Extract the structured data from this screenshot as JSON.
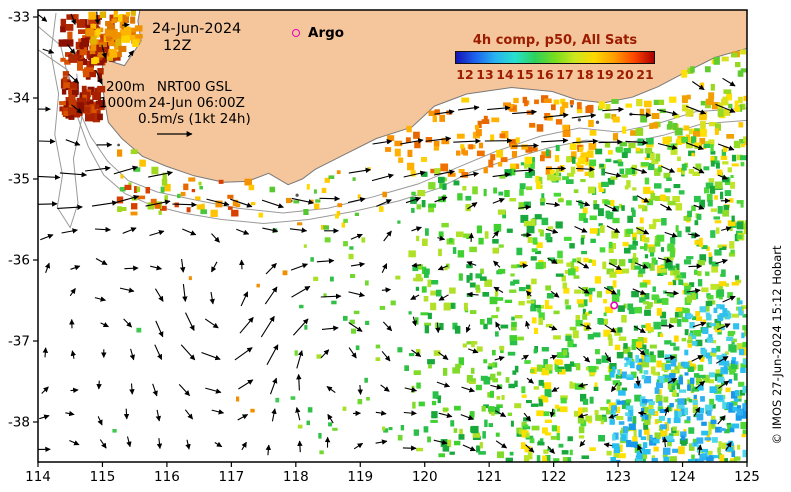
{
  "header": {
    "date": "24-Jun-2024",
    "time": "12Z",
    "depth1": "200m",
    "model": "NRT00 GSL",
    "depth2": "1000m",
    "model2_date": "24-Jun 06:00Z",
    "scale_label": "0.5m/s (1kt 24h)"
  },
  "argo": {
    "label": "Argo",
    "color": "#e800c0",
    "point_lon": 122.94,
    "point_lat": -36.56
  },
  "colorbar": {
    "title": "4h comp, p50, All Sats",
    "text_color": "#9b1c00",
    "labels": [
      "12",
      "13",
      "14",
      "15",
      "16",
      "17",
      "18",
      "19",
      "20",
      "21"
    ],
    "gradient": [
      "#1414b4",
      "#1e64f0",
      "#28b4f0",
      "#28e0cc",
      "#2ed25a",
      "#78dc1e",
      "#cce61e",
      "#ffd800",
      "#ff9c00",
      "#ff4600",
      "#aa0000"
    ]
  },
  "axes": {
    "x_labels": [
      "114",
      "115",
      "116",
      "117",
      "118",
      "119",
      "120",
      "121",
      "122",
      "123",
      "124",
      "125"
    ],
    "y_labels": [
      "-33",
      "-34",
      "-35",
      "-36",
      "-37",
      "-38"
    ]
  },
  "copyright": "© IMOS 27-Jun-2024 15:12 Hobart",
  "map": {
    "land_color": "#f5c69b",
    "coast_color": "#7a7a7a",
    "contour_color": "#9a9a9a",
    "land_polygon": [
      [
        115.62,
        -32.6
      ],
      [
        115.62,
        -32.75
      ],
      [
        115.55,
        -33.05
      ],
      [
        115.6,
        -33.3
      ],
      [
        115.34,
        -33.6
      ],
      [
        115.02,
        -33.52
      ],
      [
        114.98,
        -33.72
      ],
      [
        115.03,
        -34.02
      ],
      [
        115.09,
        -34.3
      ],
      [
        115.3,
        -34.5
      ],
      [
        115.62,
        -34.72
      ],
      [
        115.98,
        -34.84
      ],
      [
        116.42,
        -34.96
      ],
      [
        116.88,
        -35.04
      ],
      [
        117.25,
        -35.03
      ],
      [
        117.58,
        -34.93
      ],
      [
        117.88,
        -35.07
      ],
      [
        118.1,
        -35.0
      ],
      [
        118.3,
        -34.88
      ],
      [
        118.75,
        -34.7
      ],
      [
        119.25,
        -34.5
      ],
      [
        119.8,
        -34.36
      ],
      [
        120.15,
        -34.1
      ],
      [
        120.65,
        -33.95
      ],
      [
        121.35,
        -33.87
      ],
      [
        121.98,
        -33.92
      ],
      [
        122.35,
        -34.02
      ],
      [
        122.78,
        -34.06
      ],
      [
        123.22,
        -33.99
      ],
      [
        123.62,
        -33.86
      ],
      [
        124.05,
        -33.68
      ],
      [
        124.5,
        -33.5
      ],
      [
        125.3,
        -33.32
      ],
      [
        125.3,
        -32.6
      ]
    ],
    "islands": [
      [
        122.12,
        -34.2,
        1.7
      ],
      [
        122.4,
        -34.27,
        1.6
      ],
      [
        122.68,
        -34.3,
        1.7
      ],
      [
        122.95,
        -34.27,
        1.5
      ],
      [
        123.2,
        -34.2,
        1.6
      ],
      [
        122.28,
        -34.1,
        1.4
      ],
      [
        118.02,
        -35.2,
        1.6
      ],
      [
        117.93,
        -35.27,
        1.3
      ],
      [
        115.25,
        -34.58,
        1.4
      ]
    ],
    "contours": [
      [
        [
          113.9,
          -33.05
        ],
        [
          114.35,
          -33.35
        ],
        [
          114.5,
          -33.85
        ],
        [
          114.62,
          -34.25
        ],
        [
          114.78,
          -34.6
        ],
        [
          115.02,
          -34.95
        ],
        [
          115.35,
          -35.18
        ],
        [
          115.75,
          -35.32
        ],
        [
          116.25,
          -35.42
        ],
        [
          116.85,
          -35.5
        ],
        [
          117.5,
          -35.55
        ],
        [
          118.2,
          -35.5
        ],
        [
          118.9,
          -35.4
        ],
        [
          119.6,
          -35.27
        ],
        [
          120.2,
          -35.12
        ],
        [
          120.7,
          -34.92
        ],
        [
          121.3,
          -34.76
        ],
        [
          121.9,
          -34.62
        ],
        [
          122.5,
          -34.52
        ],
        [
          123.1,
          -34.56
        ],
        [
          123.7,
          -34.46
        ],
        [
          124.3,
          -34.32
        ],
        [
          125.1,
          -34.27
        ]
      ],
      [
        [
          113.9,
          -33.35
        ],
        [
          114.45,
          -33.65
        ],
        [
          114.62,
          -34.12
        ],
        [
          114.82,
          -34.48
        ],
        [
          115.08,
          -34.78
        ],
        [
          115.4,
          -35.02
        ],
        [
          115.85,
          -35.16
        ],
        [
          116.45,
          -35.26
        ],
        [
          117.1,
          -35.36
        ],
        [
          117.8,
          -35.42
        ],
        [
          118.5,
          -35.36
        ],
        [
          119.2,
          -35.22
        ],
        [
          119.9,
          -35.06
        ],
        [
          120.5,
          -34.86
        ],
        [
          121.1,
          -34.66
        ],
        [
          121.8,
          -34.47
        ],
        [
          122.4,
          -34.37
        ],
        [
          123.0,
          -34.42
        ],
        [
          123.6,
          -34.32
        ],
        [
          124.2,
          -34.17
        ],
        [
          125.1,
          -34.12
        ]
      ],
      [
        [
          114.28,
          -32.95
        ],
        [
          114.2,
          -33.45
        ],
        [
          114.32,
          -33.95
        ],
        [
          114.26,
          -34.45
        ],
        [
          114.38,
          -34.95
        ],
        [
          114.3,
          -35.35
        ],
        [
          114.5,
          -35.6
        ],
        [
          114.62,
          -35.3
        ],
        [
          114.55,
          -34.75
        ],
        [
          114.68,
          -34.25
        ],
        [
          114.6,
          -33.7
        ]
      ]
    ]
  },
  "sst_regions": [
    {
      "name": "west-cape-dark",
      "lon": [
        114.38,
        115.22
      ],
      "lat": [
        -34.25,
        -33.0
      ],
      "colors": [
        "#8c1000",
        "#a82000",
        "#c23800",
        "#8c1000",
        "#d85200",
        "#b02800"
      ],
      "count": 170,
      "size": [
        4,
        10
      ],
      "seed": 11
    },
    {
      "name": "geographe-orange",
      "lon": [
        114.8,
        115.65
      ],
      "lat": [
        -33.6,
        -32.95
      ],
      "colors": [
        "#e07800",
        "#f09200",
        "#ffb400",
        "#ffd200",
        "#e0b400"
      ],
      "count": 90,
      "size": [
        4,
        9
      ],
      "seed": 12
    },
    {
      "name": "capes-south-coastal",
      "lon": [
        115.25,
        117.3
      ],
      "lat": [
        -35.45,
        -34.6
      ],
      "colors": [
        "#d84000",
        "#e86800",
        "#f49200",
        "#ffc400",
        "#48c83c",
        "#a0d820"
      ],
      "count": 80,
      "size": [
        3,
        8
      ],
      "seed": 13
    },
    {
      "name": "mid-coast-sparse",
      "lon": [
        117.3,
        119.4
      ],
      "lat": [
        -35.6,
        -34.85
      ],
      "colors": [
        "#f09200",
        "#ffc800",
        "#58c832",
        "#ffd800"
      ],
      "count": 34,
      "size": [
        3,
        6
      ],
      "seed": 14
    },
    {
      "name": "east-coastal-orange",
      "lon": [
        119.4,
        122.7
      ],
      "lat": [
        -34.95,
        -34.0
      ],
      "colors": [
        "#e86800",
        "#f89200",
        "#ffb000",
        "#ffd000",
        "#f07000"
      ],
      "count": 130,
      "size": [
        4,
        8
      ],
      "seed": 15
    },
    {
      "name": "fareast-coastal-yellow",
      "lon": [
        122.7,
        125.0
      ],
      "lat": [
        -34.6,
        -33.3
      ],
      "colors": [
        "#ffc800",
        "#ffe000",
        "#d8e020",
        "#98d820",
        "#f0a000",
        "#60cc30"
      ],
      "count": 150,
      "size": [
        4,
        8
      ],
      "seed": 16
    },
    {
      "name": "east-green-1",
      "lon": [
        119.8,
        121.5
      ],
      "lat": [
        -38.5,
        -34.9
      ],
      "colors": [
        "#18a83c",
        "#28c048",
        "#40d030",
        "#80dc28",
        "#b0e028"
      ],
      "count": 230,
      "size": [
        3,
        8
      ],
      "seed": 17
    },
    {
      "name": "east-green-2",
      "lon": [
        121.5,
        123.3
      ],
      "lat": [
        -38.5,
        -34.6
      ],
      "colors": [
        "#18a83c",
        "#28c048",
        "#48d838",
        "#88dc28",
        "#b8e428",
        "#ffe000"
      ],
      "count": 430,
      "size": [
        3,
        8
      ],
      "seed": 18
    },
    {
      "name": "east-green-3",
      "lon": [
        123.3,
        125.0
      ],
      "lat": [
        -38.5,
        -34.5
      ],
      "colors": [
        "#18a83c",
        "#2cc44c",
        "#50d838",
        "#90dc28",
        "#c0e428",
        "#ffd800"
      ],
      "count": 520,
      "size": [
        3,
        8
      ],
      "seed": 19
    },
    {
      "name": "southeast-cyan",
      "lon": [
        122.9,
        125.0
      ],
      "lat": [
        -38.5,
        -37.2
      ],
      "colors": [
        "#28c0f0",
        "#1898e8",
        "#50d8e8",
        "#30b0f0"
      ],
      "count": 180,
      "size": [
        3,
        8
      ],
      "seed": 20
    },
    {
      "name": "southeast-cyan-2",
      "lon": [
        124.0,
        125.0
      ],
      "lat": [
        -37.3,
        -36.5
      ],
      "colors": [
        "#30c0f0",
        "#48d0e8"
      ],
      "count": 45,
      "size": [
        3,
        7
      ],
      "seed": 21
    },
    {
      "name": "central-sparse",
      "lon": [
        118.0,
        119.8
      ],
      "lat": [
        -38.4,
        -35.5
      ],
      "colors": [
        "#30c048",
        "#70d830",
        "#a8e028"
      ],
      "count": 50,
      "size": [
        3,
        6
      ],
      "seed": 22
    },
    {
      "name": "west-ocean-specks",
      "lon": [
        114.9,
        118.0
      ],
      "lat": [
        -38.3,
        -35.5
      ],
      "colors": [
        "#40c850",
        "#f09000"
      ],
      "count": 10,
      "size": [
        3,
        5
      ],
      "seed": 23
    }
  ],
  "current_field": {
    "base_east": 0.18,
    "jet_speed": 0.85,
    "jet_width": 0.5,
    "wave_amp": 0.2,
    "dlon": 0.44,
    "dlat": 0.375,
    "jitter": 0.12,
    "eddies": [
      {
        "lon": 116.8,
        "lat": -36.7,
        "r": 0.85,
        "s": 1.5
      },
      {
        "lon": 118.45,
        "lat": -37.0,
        "r": 0.9,
        "s": -1.4
      },
      {
        "lon": 115.35,
        "lat": -35.95,
        "r": 0.55,
        "s": 1.1
      },
      {
        "lon": 119.7,
        "lat": -35.9,
        "r": 0.6,
        "s": -0.8
      },
      {
        "lon": 120.8,
        "lat": -36.9,
        "r": 0.75,
        "s": 0.7
      },
      {
        "lon": 122.7,
        "lat": -37.3,
        "r": 0.7,
        "s": -0.6
      },
      {
        "lon": 114.75,
        "lat": -34.8,
        "r": 0.45,
        "s": 0.9
      }
    ]
  }
}
